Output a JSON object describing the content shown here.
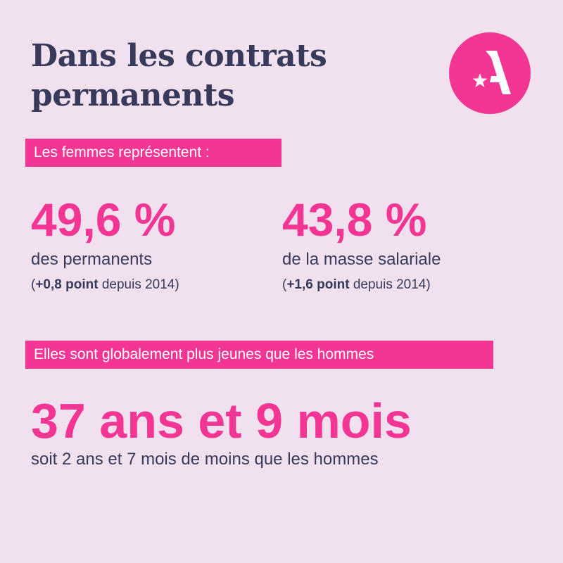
{
  "title": {
    "line1": "Dans les contrats",
    "line2": "permanents"
  },
  "logo": {
    "icon": "brand-a-star-icon",
    "color": "#f33593"
  },
  "section1": {
    "band": "Les femmes représentent :",
    "stats": [
      {
        "value": "49,6 %",
        "description": "des permanents",
        "change": "+0,8 point",
        "since": "depuis 2014"
      },
      {
        "value": "43,8 %",
        "description": "de la masse salariale",
        "change": "+1,6 point",
        "since": "depuis 2014"
      }
    ]
  },
  "section2": {
    "band": "Elles sont globalement plus jeunes que les hommes",
    "value": "37 ans et 9 mois",
    "description": "soit 2 ans et 7 mois de moins que les hommes"
  },
  "colors": {
    "background": "#f1e1ef",
    "accent": "#f33593",
    "text": "#383a5c"
  }
}
